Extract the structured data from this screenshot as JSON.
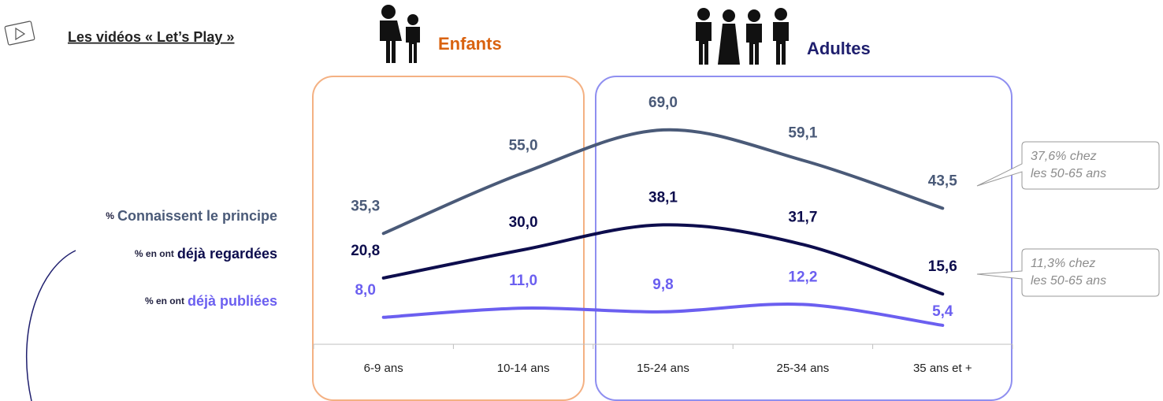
{
  "chart_data": {
    "type": "line",
    "title": "Les vidéos « Let’s Play »",
    "groups": [
      {
        "label": "Enfants",
        "color": "#d9620f"
      },
      {
        "label": "Adultes",
        "color": "#1f1f6e"
      }
    ],
    "categories": [
      "6-9 ans",
      "10-14 ans",
      "15-24 ans",
      "25-34 ans",
      "35 ans et  +"
    ],
    "series": [
      {
        "prefix": "%",
        "name": "Connaissent le principe",
        "color": "#4a5a78",
        "values": [
          35.3,
          55.0,
          69.0,
          59.1,
          43.5
        ],
        "value_labels": [
          "35,3",
          "55,0",
          "69,0",
          "59,1",
          "43,5"
        ]
      },
      {
        "prefix": "% en ont",
        "name": "déjà regardées",
        "color": "#0d0d4d",
        "values": [
          20.8,
          30.0,
          38.1,
          31.7,
          15.6
        ],
        "value_labels": [
          "20,8",
          "30,0",
          "38,1",
          "31,7",
          "15,6"
        ]
      },
      {
        "prefix": "% en ont",
        "name": "déjà publiées",
        "color": "#6b5ff0",
        "values": [
          8.0,
          11.0,
          9.8,
          12.2,
          5.4
        ],
        "value_labels": [
          "8,0",
          "11,0",
          "9,8",
          "12,2",
          "5,4"
        ]
      }
    ],
    "annotations": [
      [
        "37,6% chez",
        "les 50-65 ans"
      ],
      [
        "11,3% chez",
        "les 50-65 ans"
      ]
    ]
  }
}
